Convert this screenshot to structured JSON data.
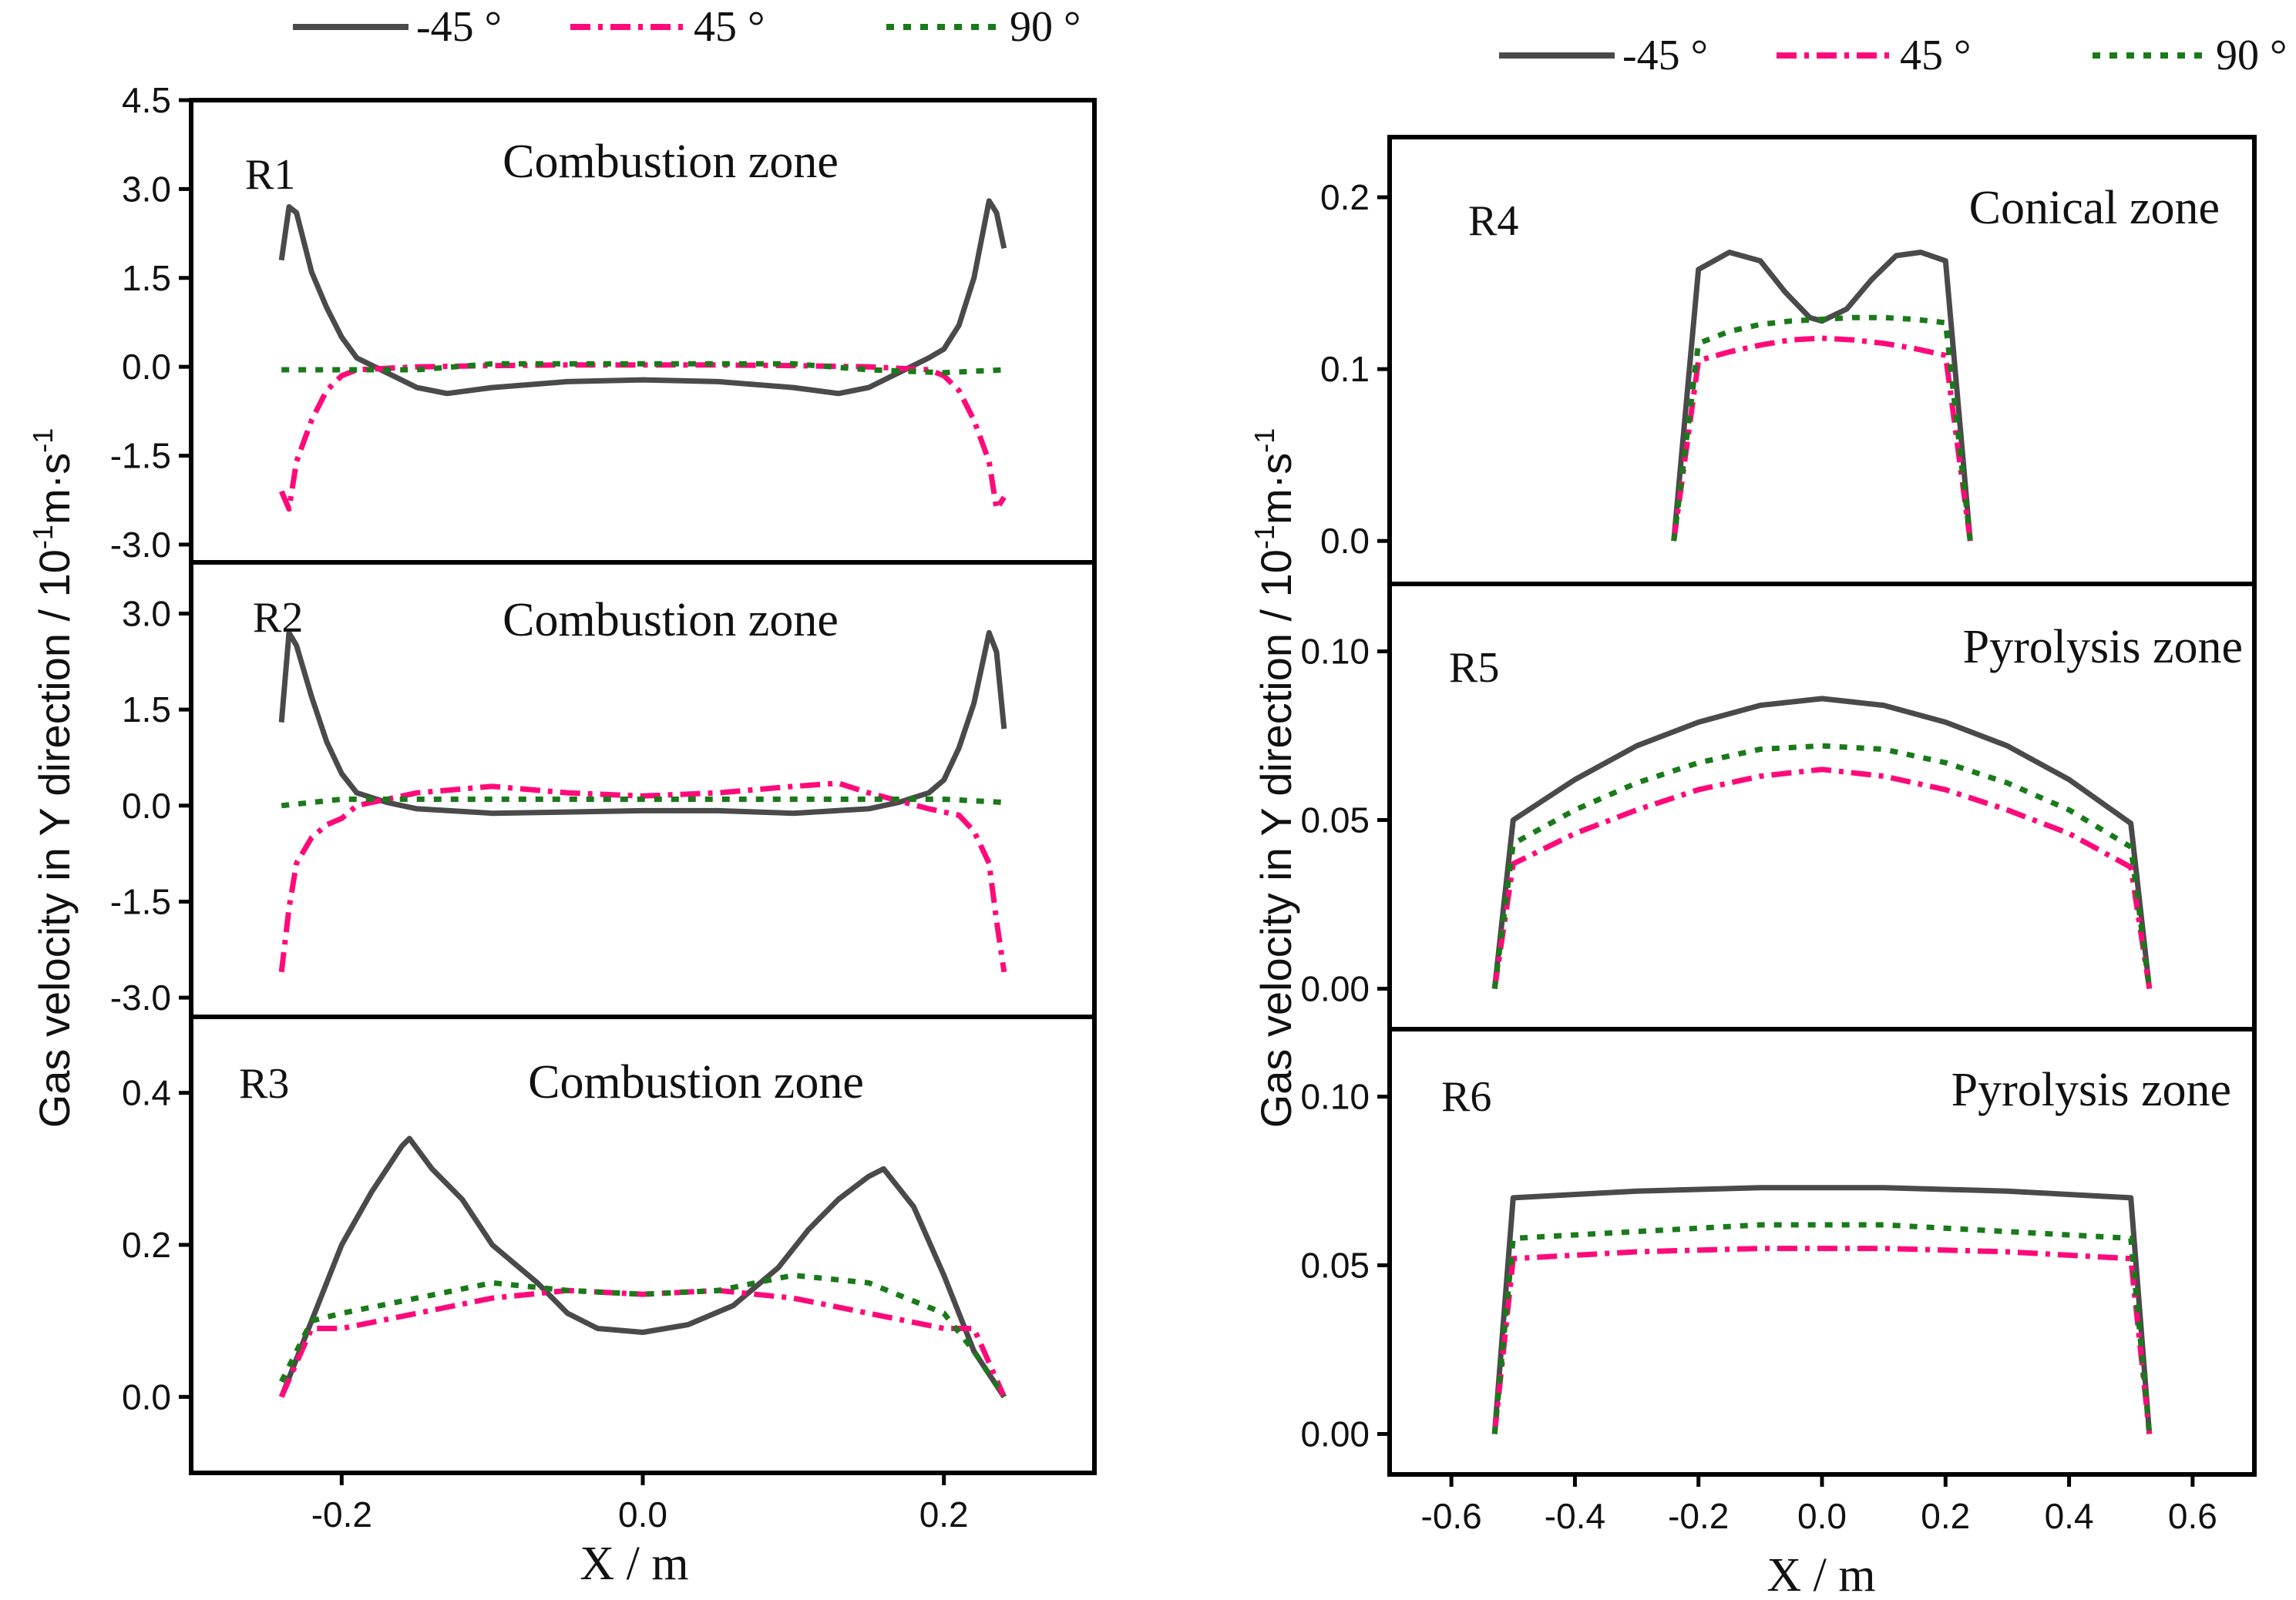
{
  "figure": {
    "xlabel": "X / m",
    "ylabel_main": "Gas velocity in Y direction / 10",
    "ylabel_sup": "-1",
    "ylabel_tail": "m·s",
    "ylabel_sup2": "-1"
  },
  "colors": {
    "s45neg": "#4a4a4a",
    "s45": "#ff0a7a",
    "s90": "#1a7a1a",
    "axis": "#000000"
  },
  "legend": [
    {
      "name": "-45 °",
      "key": "s45neg"
    },
    {
      "name": "45 °",
      "key": "s45"
    },
    {
      "name": "90 °",
      "key": "s90"
    }
  ],
  "chart_data": [
    {
      "id": "R1",
      "type": "line",
      "label": "R1",
      "zone": "Combustion zone",
      "xlim": [
        -0.3,
        0.3
      ],
      "ylim": [
        -3.3,
        4.5
      ],
      "yticks": [
        "4.5",
        "3.0",
        "1.5",
        "0.0",
        "-1.5",
        "-3.0"
      ],
      "series": [
        {
          "name": "-45 °",
          "key": "s45neg",
          "x": [
            -0.24,
            -0.235,
            -0.23,
            -0.22,
            -0.21,
            -0.2,
            -0.19,
            -0.17,
            -0.15,
            -0.13,
            -0.1,
            -0.05,
            0,
            0.05,
            0.1,
            0.13,
            0.15,
            0.17,
            0.19,
            0.2,
            0.21,
            0.22,
            0.23,
            0.235,
            0.24
          ],
          "y": [
            1.8,
            2.7,
            2.6,
            1.6,
            1.0,
            0.5,
            0.15,
            -0.1,
            -0.35,
            -0.45,
            -0.35,
            -0.25,
            -0.22,
            -0.25,
            -0.35,
            -0.45,
            -0.35,
            -0.1,
            0.15,
            0.3,
            0.7,
            1.5,
            2.8,
            2.6,
            2.0
          ]
        },
        {
          "name": "45 °",
          "key": "s45",
          "x": [
            -0.24,
            -0.235,
            -0.23,
            -0.22,
            -0.21,
            -0.2,
            -0.19,
            -0.15,
            -0.1,
            -0.05,
            0,
            0.05,
            0.1,
            0.15,
            0.19,
            0.2,
            0.21,
            0.22,
            0.23,
            0.235,
            0.24
          ],
          "y": [
            -2.1,
            -2.4,
            -1.6,
            -0.9,
            -0.4,
            -0.15,
            -0.05,
            0.0,
            0.02,
            0.03,
            0.03,
            0.03,
            0.02,
            0.0,
            -0.05,
            -0.15,
            -0.4,
            -0.9,
            -1.6,
            -2.4,
            -2.2
          ]
        },
        {
          "name": "90 °",
          "key": "s90",
          "x": [
            -0.24,
            -0.2,
            -0.15,
            -0.1,
            -0.05,
            0,
            0.05,
            0.1,
            0.15,
            0.2,
            0.24
          ],
          "y": [
            -0.05,
            -0.05,
            -0.05,
            0.05,
            0.05,
            0.05,
            0.05,
            0.05,
            -0.05,
            -0.1,
            -0.05
          ]
        }
      ]
    },
    {
      "id": "R2",
      "type": "line",
      "label": "R2",
      "zone": "Combustion zone",
      "xlim": [
        -0.3,
        0.3
      ],
      "ylim": [
        -3.3,
        3.8
      ],
      "yticks": [
        "3.0",
        "1.5",
        "0.0",
        "-1.5",
        "-3.0"
      ],
      "series": [
        {
          "name": "-45 °",
          "key": "s45neg",
          "x": [
            -0.24,
            -0.235,
            -0.23,
            -0.22,
            -0.21,
            -0.2,
            -0.19,
            -0.17,
            -0.15,
            -0.1,
            -0.05,
            0,
            0.05,
            0.1,
            0.15,
            0.17,
            0.19,
            0.2,
            0.21,
            0.22,
            0.23,
            0.235,
            0.24
          ],
          "y": [
            1.3,
            2.7,
            2.5,
            1.7,
            1.0,
            0.5,
            0.2,
            0.05,
            -0.05,
            -0.12,
            -0.1,
            -0.08,
            -0.08,
            -0.12,
            -0.05,
            0.05,
            0.2,
            0.4,
            0.9,
            1.6,
            2.7,
            2.4,
            1.2
          ]
        },
        {
          "name": "45 °",
          "key": "s45",
          "x": [
            -0.24,
            -0.235,
            -0.23,
            -0.22,
            -0.21,
            -0.2,
            -0.19,
            -0.15,
            -0.1,
            -0.05,
            0,
            0.05,
            0.1,
            0.13,
            0.15,
            0.19,
            0.2,
            0.21,
            0.22,
            0.23,
            0.235,
            0.24
          ],
          "y": [
            -2.6,
            -1.6,
            -0.9,
            -0.5,
            -0.3,
            -0.2,
            0.0,
            0.2,
            0.3,
            0.2,
            0.15,
            0.2,
            0.3,
            0.35,
            0.2,
            -0.05,
            -0.1,
            -0.15,
            -0.4,
            -0.9,
            -1.8,
            -2.6
          ]
        },
        {
          "name": "90 °",
          "key": "s90",
          "x": [
            -0.24,
            -0.2,
            -0.15,
            -0.1,
            -0.05,
            0,
            0.05,
            0.1,
            0.15,
            0.2,
            0.24
          ],
          "y": [
            0.0,
            0.1,
            0.1,
            0.1,
            0.1,
            0.1,
            0.1,
            0.1,
            0.1,
            0.1,
            0.05
          ]
        }
      ]
    },
    {
      "id": "R3",
      "type": "line",
      "label": "R3",
      "zone": "Combustion zone",
      "xlim": [
        -0.3,
        0.3
      ],
      "ylim": [
        -0.1,
        0.5
      ],
      "yticks": [
        "0.4",
        "0.2",
        "0.0"
      ],
      "xticks": [
        "-0.2",
        "0.0",
        "0.2"
      ],
      "xtick_values": [
        -0.2,
        0.0,
        0.2
      ],
      "series": [
        {
          "name": "-45 °",
          "key": "s45neg",
          "x": [
            -0.24,
            -0.22,
            -0.2,
            -0.18,
            -0.16,
            -0.155,
            -0.14,
            -0.12,
            -0.1,
            -0.07,
            -0.05,
            -0.03,
            0,
            0.03,
            0.06,
            0.09,
            0.11,
            0.13,
            0.15,
            0.16,
            0.18,
            0.2,
            0.22,
            0.24
          ],
          "y": [
            0.0,
            0.1,
            0.2,
            0.27,
            0.33,
            0.34,
            0.3,
            0.26,
            0.2,
            0.15,
            0.11,
            0.09,
            0.085,
            0.095,
            0.12,
            0.17,
            0.22,
            0.26,
            0.29,
            0.3,
            0.25,
            0.16,
            0.06,
            0.0
          ]
        },
        {
          "name": "45 °",
          "key": "s45",
          "x": [
            -0.24,
            -0.22,
            -0.2,
            -0.15,
            -0.1,
            -0.05,
            0,
            0.05,
            0.1,
            0.15,
            0.2,
            0.22,
            0.24
          ],
          "y": [
            0.0,
            0.09,
            0.09,
            0.11,
            0.13,
            0.14,
            0.135,
            0.14,
            0.13,
            0.11,
            0.09,
            0.09,
            0.0
          ]
        },
        {
          "name": "90 °",
          "key": "s90",
          "x": [
            -0.24,
            -0.22,
            -0.2,
            -0.15,
            -0.1,
            -0.05,
            0,
            0.05,
            0.1,
            0.15,
            0.2,
            0.22,
            0.24
          ],
          "y": [
            0.02,
            0.1,
            0.11,
            0.13,
            0.15,
            0.14,
            0.135,
            0.14,
            0.16,
            0.15,
            0.11,
            0.06,
            0.0
          ]
        }
      ]
    },
    {
      "id": "R4",
      "type": "line",
      "label": "R4",
      "zone": "Conical zone",
      "xlim": [
        -0.7,
        0.7
      ],
      "ylim": [
        -0.025,
        0.235
      ],
      "yticks": [
        "0.2",
        "0.1",
        "0.0"
      ],
      "series": [
        {
          "name": "-45 °",
          "key": "s45neg",
          "x": [
            -0.24,
            -0.2,
            -0.15,
            -0.1,
            -0.06,
            -0.02,
            0,
            0.04,
            0.08,
            0.12,
            0.16,
            0.2,
            0.24
          ],
          "y": [
            0.0,
            0.158,
            0.168,
            0.163,
            0.145,
            0.13,
            0.128,
            0.135,
            0.152,
            0.166,
            0.168,
            0.163,
            0.0
          ]
        },
        {
          "name": "45 °",
          "key": "s45",
          "x": [
            -0.24,
            -0.2,
            -0.15,
            -0.1,
            -0.05,
            0,
            0.05,
            0.1,
            0.15,
            0.2,
            0.24
          ],
          "y": [
            0.0,
            0.105,
            0.11,
            0.114,
            0.117,
            0.118,
            0.117,
            0.115,
            0.112,
            0.108,
            0.0
          ]
        },
        {
          "name": "90 °",
          "key": "s90",
          "x": [
            -0.24,
            -0.2,
            -0.15,
            -0.1,
            -0.05,
            0,
            0.05,
            0.1,
            0.15,
            0.2,
            0.24
          ],
          "y": [
            0.0,
            0.115,
            0.122,
            0.126,
            0.128,
            0.129,
            0.13,
            0.13,
            0.129,
            0.127,
            0.0
          ]
        }
      ]
    },
    {
      "id": "R5",
      "type": "line",
      "label": "R5",
      "zone": "Pyrolysis zone",
      "xlim": [
        -0.7,
        0.7
      ],
      "ylim": [
        -0.012,
        0.12
      ],
      "yticks": [
        "0.10",
        "0.05",
        "0.00"
      ],
      "series": [
        {
          "name": "-45 °",
          "key": "s45neg",
          "x": [
            -0.53,
            -0.5,
            -0.4,
            -0.3,
            -0.2,
            -0.1,
            0,
            0.1,
            0.2,
            0.3,
            0.4,
            0.5,
            0.53
          ],
          "y": [
            0.0,
            0.05,
            0.062,
            0.072,
            0.079,
            0.084,
            0.086,
            0.084,
            0.079,
            0.072,
            0.062,
            0.049,
            0.0
          ]
        },
        {
          "name": "45 °",
          "key": "s45",
          "x": [
            -0.53,
            -0.5,
            -0.4,
            -0.3,
            -0.2,
            -0.1,
            0,
            0.1,
            0.2,
            0.3,
            0.4,
            0.5,
            0.53
          ],
          "y": [
            0.0,
            0.037,
            0.046,
            0.053,
            0.059,
            0.063,
            0.065,
            0.063,
            0.059,
            0.053,
            0.046,
            0.036,
            0.0
          ]
        },
        {
          "name": "90 °",
          "key": "s90",
          "x": [
            -0.53,
            -0.5,
            -0.4,
            -0.3,
            -0.2,
            -0.1,
            0,
            0.1,
            0.2,
            0.3,
            0.4,
            0.5,
            0.53
          ],
          "y": [
            0.0,
            0.043,
            0.053,
            0.061,
            0.067,
            0.071,
            0.072,
            0.071,
            0.067,
            0.061,
            0.053,
            0.042,
            0.0
          ]
        }
      ]
    },
    {
      "id": "R6",
      "type": "line",
      "label": "R6",
      "zone": "Pyrolysis zone",
      "xlim": [
        -0.7,
        0.7
      ],
      "ylim": [
        -0.012,
        0.12
      ],
      "yticks": [
        "0.10",
        "0.05",
        "0.00"
      ],
      "xticks": [
        "-0.6",
        "-0.4",
        "-0.2",
        "0.0",
        "0.2",
        "0.4",
        "0.6"
      ],
      "xtick_values": [
        -0.6,
        -0.4,
        -0.2,
        0.0,
        0.2,
        0.4,
        0.6
      ],
      "series": [
        {
          "name": "-45 °",
          "key": "s45neg",
          "x": [
            -0.53,
            -0.5,
            -0.3,
            -0.1,
            0,
            0.1,
            0.3,
            0.5,
            0.53
          ],
          "y": [
            0.0,
            0.07,
            0.072,
            0.073,
            0.073,
            0.073,
            0.072,
            0.07,
            0.0
          ]
        },
        {
          "name": "45 °",
          "key": "s45",
          "x": [
            -0.53,
            -0.5,
            -0.3,
            -0.1,
            0,
            0.1,
            0.3,
            0.5,
            0.53
          ],
          "y": [
            0.0,
            0.052,
            0.054,
            0.055,
            0.055,
            0.055,
            0.054,
            0.052,
            0.0
          ]
        },
        {
          "name": "90 °",
          "key": "s90",
          "x": [
            -0.53,
            -0.5,
            -0.3,
            -0.1,
            0,
            0.1,
            0.3,
            0.5,
            0.53
          ],
          "y": [
            0.0,
            0.058,
            0.06,
            0.062,
            0.062,
            0.062,
            0.06,
            0.058,
            0.0
          ]
        }
      ]
    }
  ]
}
